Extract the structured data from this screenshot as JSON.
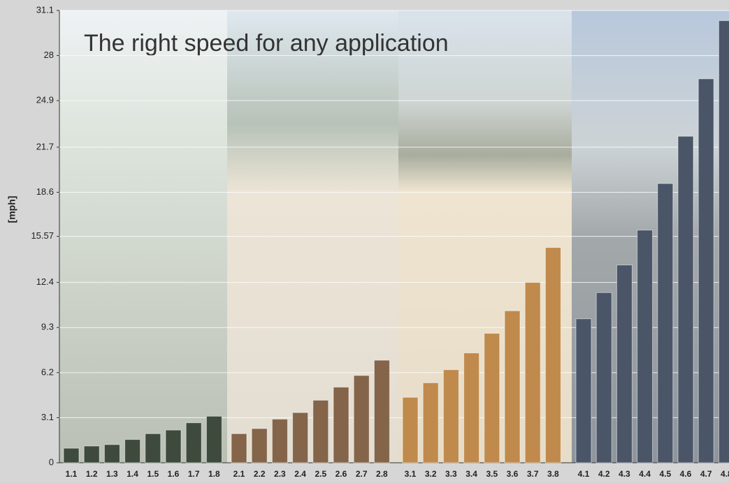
{
  "chart_data": {
    "type": "bar",
    "title": "The right speed for any application",
    "y_label": "[mph]",
    "ylim": [
      0,
      31.1
    ],
    "yticks": [
      0,
      3.1,
      6.2,
      9.3,
      12.4,
      15.57,
      18.6,
      21.7,
      24.9,
      28,
      31.1
    ],
    "grid": true,
    "groups": [
      {
        "categories": [
          "1.1",
          "1.2",
          "1.3",
          "1.4",
          "1.5",
          "1.6",
          "1.7",
          "1.8"
        ],
        "values": [
          1.0,
          1.15,
          1.25,
          1.6,
          2.0,
          2.25,
          2.75,
          3.2
        ],
        "color": "#3d4a3c"
      },
      {
        "categories": [
          "2.1",
          "2.2",
          "2.3",
          "2.4",
          "2.5",
          "2.6",
          "2.7",
          "2.8"
        ],
        "values": [
          2.0,
          2.35,
          3.0,
          3.45,
          4.3,
          5.2,
          6.0,
          7.05
        ],
        "color": "#84654a"
      },
      {
        "categories": [
          "3.1",
          "3.2",
          "3.3",
          "3.4",
          "3.5",
          "3.6",
          "3.7",
          "3.8"
        ],
        "values": [
          4.5,
          5.5,
          6.4,
          7.55,
          8.9,
          10.45,
          12.4,
          14.8
        ],
        "color": "#c08a4c"
      },
      {
        "categories": [
          "4.1",
          "4.2",
          "4.3",
          "4.4",
          "4.5",
          "4.6",
          "4.7",
          "4.8"
        ],
        "values": [
          9.9,
          11.7,
          13.6,
          16.0,
          19.2,
          22.45,
          26.4,
          30.4
        ],
        "color": "#4a5568"
      }
    ]
  }
}
